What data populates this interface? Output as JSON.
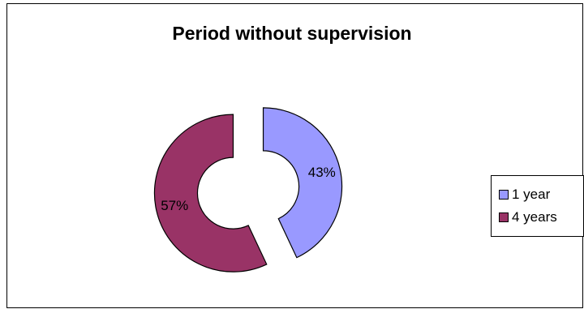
{
  "chart_data": {
    "type": "pie",
    "variant": "doughnut-exploded",
    "title": "Period without supervision",
    "categories": [
      "1 year",
      "4 years"
    ],
    "values": [
      43,
      57
    ],
    "labels": [
      "43%",
      "57%"
    ],
    "colors": [
      "#9999ff",
      "#993366"
    ],
    "legend": "right"
  }
}
